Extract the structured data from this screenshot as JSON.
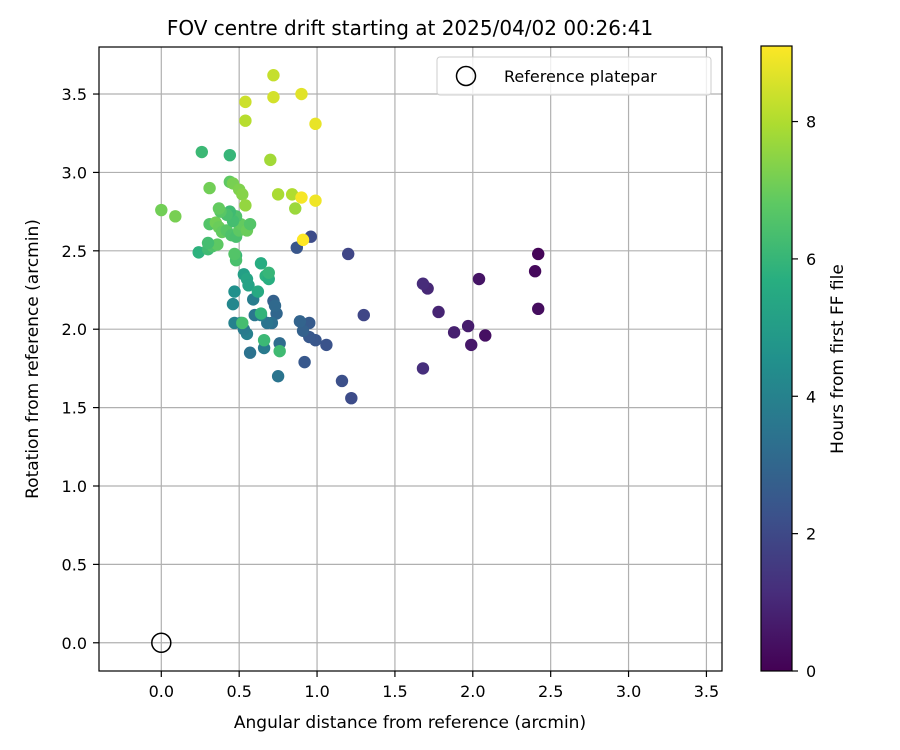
{
  "chart_data": {
    "type": "scatter",
    "title": "FOV centre drift starting at 2025/04/02 00:26:41",
    "xlabel": "Angular distance from reference (arcmin)",
    "ylabel": "Rotation from reference (arcmin)",
    "xlim": [
      -0.4,
      3.6
    ],
    "ylim": [
      -0.18,
      3.8
    ],
    "xticks": [
      "0.0",
      "0.5",
      "1.0",
      "1.5",
      "2.0",
      "2.5",
      "3.0",
      "3.5"
    ],
    "yticks": [
      "0.0",
      "0.5",
      "1.0",
      "1.5",
      "2.0",
      "2.5",
      "3.0",
      "3.5"
    ],
    "grid": true,
    "legend": {
      "placement": "top-right",
      "entries": [
        "Reference platepar"
      ]
    },
    "reference_point": {
      "x": 0.0,
      "y": 0.0,
      "marker": "open-circle"
    },
    "colorbar": {
      "label": "Hours from first FF file",
      "colormap": "viridis",
      "range": [
        0,
        9.1
      ],
      "ticks": [
        "0",
        "2",
        "4",
        "6",
        "8"
      ]
    },
    "points": [
      {
        "x": 2.42,
        "y": 2.48,
        "c": 0.1
      },
      {
        "x": 2.4,
        "y": 2.37,
        "c": 0.2
      },
      {
        "x": 2.42,
        "y": 2.13,
        "c": 0.3
      },
      {
        "x": 2.08,
        "y": 1.96,
        "c": 0.4
      },
      {
        "x": 2.04,
        "y": 2.32,
        "c": 0.5
      },
      {
        "x": 1.99,
        "y": 1.9,
        "c": 0.6
      },
      {
        "x": 1.97,
        "y": 2.02,
        "c": 0.7
      },
      {
        "x": 1.88,
        "y": 1.98,
        "c": 0.8
      },
      {
        "x": 1.78,
        "y": 2.11,
        "c": 0.9
      },
      {
        "x": 1.71,
        "y": 2.26,
        "c": 1.0
      },
      {
        "x": 1.68,
        "y": 2.29,
        "c": 1.1
      },
      {
        "x": 1.68,
        "y": 1.75,
        "c": 1.2
      },
      {
        "x": 1.3,
        "y": 2.09,
        "c": 1.9
      },
      {
        "x": 1.22,
        "y": 1.56,
        "c": 2.1
      },
      {
        "x": 1.2,
        "y": 2.48,
        "c": 1.9
      },
      {
        "x": 1.16,
        "y": 1.67,
        "c": 2.2
      },
      {
        "x": 1.06,
        "y": 1.9,
        "c": 2.3
      },
      {
        "x": 0.99,
        "y": 1.93,
        "c": 2.4
      },
      {
        "x": 0.96,
        "y": 2.59,
        "c": 2.1
      },
      {
        "x": 0.95,
        "y": 1.95,
        "c": 2.5
      },
      {
        "x": 0.95,
        "y": 2.04,
        "c": 2.6
      },
      {
        "x": 0.92,
        "y": 1.79,
        "c": 2.5
      },
      {
        "x": 0.91,
        "y": 1.99,
        "c": 2.8
      },
      {
        "x": 0.89,
        "y": 2.05,
        "c": 2.9
      },
      {
        "x": 0.87,
        "y": 2.52,
        "c": 2.4
      },
      {
        "x": 0.75,
        "y": 1.7,
        "c": 3.5
      },
      {
        "x": 0.76,
        "y": 1.91,
        "c": 3.2
      },
      {
        "x": 0.74,
        "y": 2.1,
        "c": 3.0
      },
      {
        "x": 0.72,
        "y": 2.18,
        "c": 2.8
      },
      {
        "x": 0.73,
        "y": 2.15,
        "c": 3.1
      },
      {
        "x": 0.71,
        "y": 2.04,
        "c": 3.3
      },
      {
        "x": 0.68,
        "y": 2.04,
        "c": 3.5
      },
      {
        "x": 0.66,
        "y": 1.88,
        "c": 3.7
      },
      {
        "x": 0.64,
        "y": 2.09,
        "c": 3.9
      },
      {
        "x": 0.6,
        "y": 2.09,
        "c": 3.6
      },
      {
        "x": 0.59,
        "y": 2.19,
        "c": 3.8
      },
      {
        "x": 0.57,
        "y": 1.85,
        "c": 3.4
      },
      {
        "x": 0.55,
        "y": 1.97,
        "c": 3.9
      },
      {
        "x": 0.53,
        "y": 2.0,
        "c": 3.7
      },
      {
        "x": 0.51,
        "y": 2.04,
        "c": 4.1
      },
      {
        "x": 0.47,
        "y": 2.04,
        "c": 4.0
      },
      {
        "x": 0.46,
        "y": 2.16,
        "c": 4.2
      },
      {
        "x": 0.47,
        "y": 2.24,
        "c": 4.5
      },
      {
        "x": 0.53,
        "y": 2.35,
        "c": 5.1
      },
      {
        "x": 0.55,
        "y": 2.32,
        "c": 5.3
      },
      {
        "x": 0.56,
        "y": 2.28,
        "c": 5.2
      },
      {
        "x": 0.62,
        "y": 2.24,
        "c": 5.5
      },
      {
        "x": 0.64,
        "y": 2.42,
        "c": 5.6
      },
      {
        "x": 0.67,
        "y": 2.34,
        "c": 5.8
      },
      {
        "x": 0.69,
        "y": 2.32,
        "c": 5.7
      },
      {
        "x": 0.69,
        "y": 2.36,
        "c": 6.0
      },
      {
        "x": 0.64,
        "y": 2.1,
        "c": 5.9
      },
      {
        "x": 0.66,
        "y": 1.93,
        "c": 6.1
      },
      {
        "x": 0.76,
        "y": 1.86,
        "c": 6.2
      },
      {
        "x": 0.52,
        "y": 2.04,
        "c": 6.3
      },
      {
        "x": 0.48,
        "y": 2.47,
        "c": 6.0
      },
      {
        "x": 0.48,
        "y": 2.44,
        "c": 6.4
      },
      {
        "x": 0.47,
        "y": 2.48,
        "c": 6.6
      },
      {
        "x": 0.24,
        "y": 2.49,
        "c": 5.8
      },
      {
        "x": 0.3,
        "y": 2.51,
        "c": 6.2
      },
      {
        "x": 0.33,
        "y": 2.53,
        "c": 6.5
      },
      {
        "x": 0.36,
        "y": 2.54,
        "c": 6.8
      },
      {
        "x": 0.3,
        "y": 2.55,
        "c": 6.3
      },
      {
        "x": 0.31,
        "y": 2.67,
        "c": 6.6
      },
      {
        "x": 0.35,
        "y": 2.68,
        "c": 7.1
      },
      {
        "x": 0.37,
        "y": 2.65,
        "c": 7.0
      },
      {
        "x": 0.39,
        "y": 2.62,
        "c": 6.9
      },
      {
        "x": 0.42,
        "y": 2.63,
        "c": 6.7
      },
      {
        "x": 0.45,
        "y": 2.6,
        "c": 6.5
      },
      {
        "x": 0.48,
        "y": 2.59,
        "c": 6.4
      },
      {
        "x": 0.5,
        "y": 2.63,
        "c": 6.8
      },
      {
        "x": 0.51,
        "y": 2.67,
        "c": 6.9
      },
      {
        "x": 0.55,
        "y": 2.63,
        "c": 7.0
      },
      {
        "x": 0.57,
        "y": 2.67,
        "c": 6.6
      },
      {
        "x": 0.48,
        "y": 2.72,
        "c": 6.5
      },
      {
        "x": 0.46,
        "y": 2.69,
        "c": 6.3
      },
      {
        "x": 0.44,
        "y": 2.75,
        "c": 6.2
      },
      {
        "x": 0.42,
        "y": 2.73,
        "c": 6.4
      },
      {
        "x": 0.38,
        "y": 2.75,
        "c": 6.7
      },
      {
        "x": 0.37,
        "y": 2.77,
        "c": 6.9
      },
      {
        "x": 0.26,
        "y": 3.13,
        "c": 6.1
      },
      {
        "x": 0.44,
        "y": 3.11,
        "c": 6.0
      },
      {
        "x": 0.31,
        "y": 2.9,
        "c": 7.1
      },
      {
        "x": 0.44,
        "y": 2.94,
        "c": 6.8
      },
      {
        "x": 0.46,
        "y": 2.93,
        "c": 7.2
      },
      {
        "x": 0.5,
        "y": 2.89,
        "c": 7.3
      },
      {
        "x": 0.52,
        "y": 2.86,
        "c": 7.4
      },
      {
        "x": 0.54,
        "y": 2.79,
        "c": 7.6
      },
      {
        "x": 0.0,
        "y": 2.76,
        "c": 7.1
      },
      {
        "x": 0.09,
        "y": 2.72,
        "c": 7.2
      },
      {
        "x": 0.7,
        "y": 3.08,
        "c": 7.8
      },
      {
        "x": 0.75,
        "y": 2.86,
        "c": 7.9
      },
      {
        "x": 0.84,
        "y": 2.86,
        "c": 8.0
      },
      {
        "x": 0.86,
        "y": 2.77,
        "c": 7.7
      },
      {
        "x": 0.54,
        "y": 3.33,
        "c": 8.1
      },
      {
        "x": 0.54,
        "y": 3.45,
        "c": 8.4
      },
      {
        "x": 0.72,
        "y": 3.48,
        "c": 8.5
      },
      {
        "x": 0.72,
        "y": 3.62,
        "c": 8.3
      },
      {
        "x": 0.9,
        "y": 3.5,
        "c": 8.7
      },
      {
        "x": 0.99,
        "y": 3.31,
        "c": 8.8
      },
      {
        "x": 0.9,
        "y": 2.84,
        "c": 9.0
      },
      {
        "x": 0.99,
        "y": 2.82,
        "c": 8.9
      },
      {
        "x": 0.91,
        "y": 2.57,
        "c": 9.1
      }
    ]
  }
}
